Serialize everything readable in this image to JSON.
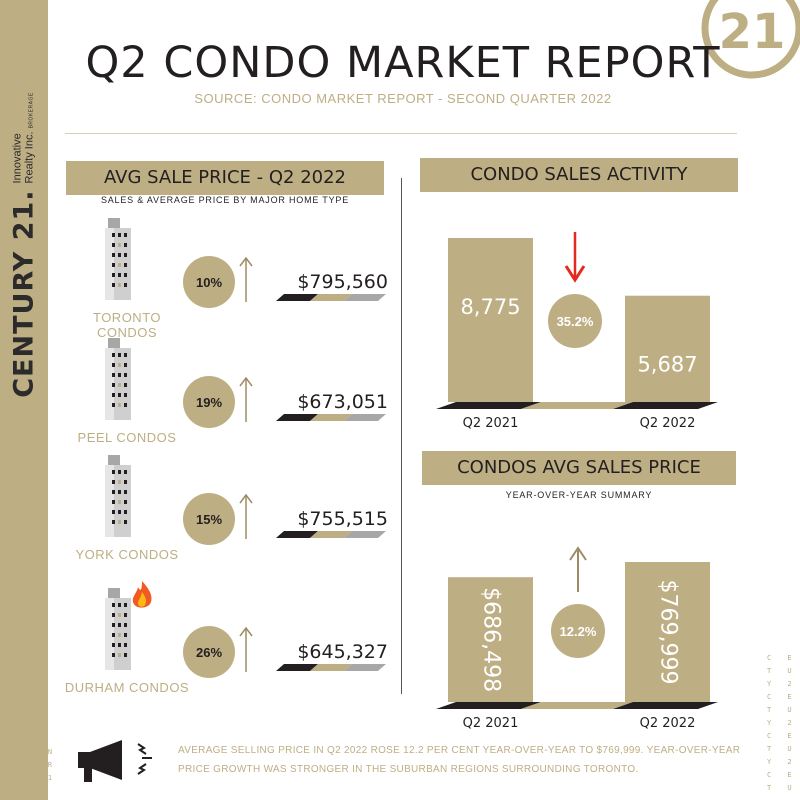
{
  "title": "Q2 CONDO MARKET REPORT",
  "subtitle": "SOURCE: CONDO MARKET REPORT - SECOND QUARTER 2022",
  "brand": {
    "logo_numeral": "21",
    "name": "CENTURY 21.",
    "sub_line1": "Innovative",
    "sub_line2": "Realty Inc.",
    "sub_tag": "BROKERAGE",
    "pattern_left": "C E N\nT U R\nY 2 1",
    "pattern_right": "C E N\nT U R\nY 2 1\nC E N\nT U R\nY 2 1\nC E N\nT U R\nY 2 1\nC E N\nT U R"
  },
  "left_panel": {
    "header": "AVG SALE PRICE - Q2 2022",
    "caption": "SALES & AVERAGE PRICE BY MAJOR HOME TYPE",
    "items": [
      {
        "label": "TORONTO CONDOS",
        "change": "10%",
        "price": "$795,560"
      },
      {
        "label": "PEEL CONDOS",
        "change": "19%",
        "price": "$673,051"
      },
      {
        "label": "YORK CONDOS",
        "change": "15%",
        "price": "$755,515"
      },
      {
        "label": "DURHAM CONDOS",
        "change": "26%",
        "price": "$645,327"
      }
    ]
  },
  "chart_data": [
    {
      "type": "bar",
      "title": "CONDO SALES ACTIVITY",
      "categories": [
        "Q2 2021",
        "Q2 2022"
      ],
      "values": [
        8775,
        5687
      ],
      "value_labels": [
        "8,775",
        "5,687"
      ],
      "change_label": "35.2%",
      "change_direction": "down",
      "ylim": [
        0,
        8775
      ]
    },
    {
      "type": "bar",
      "title": "CONDOS AVG SALES PRICE",
      "subtitle": "YEAR-OVER-YEAR SUMMARY",
      "categories": [
        "Q2 2021",
        "Q2 2022"
      ],
      "values": [
        686498,
        769999
      ],
      "value_labels": [
        "$686,498",
        "$769,999"
      ],
      "change_label": "12.2%",
      "change_direction": "up",
      "ylim": [
        0,
        769999
      ]
    }
  ],
  "footer": {
    "line1": "AVERAGE SELLING PRICE IN Q2 2022 ROSE 12.2 PER CENT YEAR-OVER-YEAR TO $769,999. YEAR-OVER-YEAR",
    "line2": "PRICE GROWTH WAS STRONGER IN THE SUBURBAN REGIONS SURROUNDING TORONTO."
  },
  "icons": {
    "logo": "century21-logo-icon",
    "building": "condo-building-icon",
    "arrow_up": "arrow-up-icon",
    "arrow_down": "arrow-down-icon",
    "fire": "fire-icon",
    "megaphone": "megaphone-icon"
  },
  "colors": {
    "gold": "#beae84",
    "dark": "#231f20",
    "grey": "#a7a7a7",
    "red": "#e42a1d",
    "white": "#ffffff"
  }
}
